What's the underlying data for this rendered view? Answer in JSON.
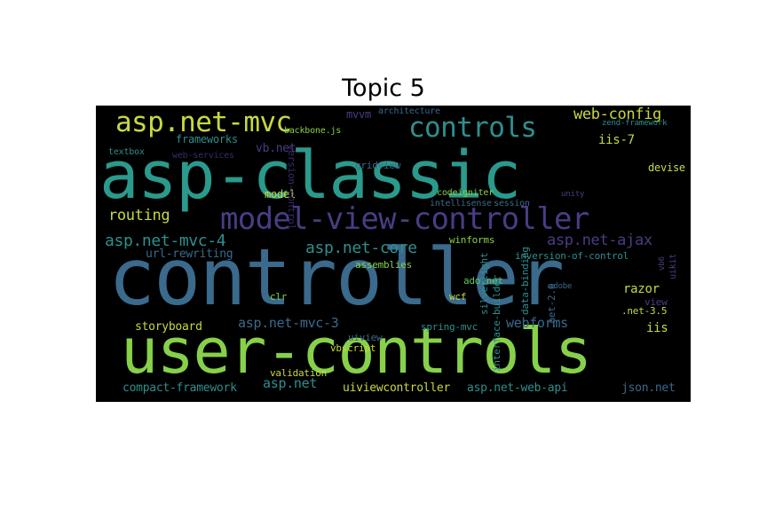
{
  "title": "Topic 5",
  "colors": {
    "yellow": "#c8d83e",
    "green": "#86d149",
    "teal": "#2a9a8c",
    "teal2": "#2e8f8e",
    "blue": "#3a6a8c",
    "purple": "#4a3c84",
    "darkpurple": "#3b2a6a",
    "lightgreen": "#5ec962"
  },
  "words": [
    {
      "id": "asp-classic",
      "text": "asp-classic"
    },
    {
      "id": "controller",
      "text": "controller"
    },
    {
      "id": "user-controls",
      "text": "user-controls"
    },
    {
      "id": "model-view-controller",
      "text": "model-view-controller"
    },
    {
      "id": "asp-net-mvc",
      "text": "asp.net-mvc"
    },
    {
      "id": "controls",
      "text": "controls"
    },
    {
      "id": "web-config",
      "text": "web-config"
    },
    {
      "id": "routing",
      "text": "routing"
    },
    {
      "id": "asp-net-mvc-4",
      "text": "asp.net-mvc-4"
    },
    {
      "id": "asp-net-core",
      "text": "asp.net-core"
    },
    {
      "id": "asp-net-ajax",
      "text": "asp.net-ajax"
    },
    {
      "id": "frameworks",
      "text": "frameworks"
    },
    {
      "id": "mvvm",
      "text": "mvvm"
    },
    {
      "id": "architecture",
      "text": "architecture"
    },
    {
      "id": "iis-7",
      "text": "iis-7"
    },
    {
      "id": "vb-net",
      "text": "vb.net"
    },
    {
      "id": "backbone-js",
      "text": "backbone.js"
    },
    {
      "id": "gridview",
      "text": "gridview"
    },
    {
      "id": "devise",
      "text": "devise"
    },
    {
      "id": "model",
      "text": "model"
    },
    {
      "id": "url-rewriting",
      "text": "url-rewriting"
    },
    {
      "id": "winforms",
      "text": "winforms"
    },
    {
      "id": "assemblies",
      "text": "assemblies"
    },
    {
      "id": "inversion-of-control",
      "text": "inversion-of-control"
    },
    {
      "id": "ado-net",
      "text": "ado.net"
    },
    {
      "id": "razor",
      "text": "razor"
    },
    {
      "id": "view",
      "text": "view"
    },
    {
      "id": "net-3-5",
      "text": ".net-3.5"
    },
    {
      "id": "storyboard",
      "text": "storyboard"
    },
    {
      "id": "asp-net-mvc-3",
      "text": "asp.net-mvc-3"
    },
    {
      "id": "spring-mvc",
      "text": "spring-mvc"
    },
    {
      "id": "webforms",
      "text": "webforms"
    },
    {
      "id": "iis",
      "text": "iis"
    },
    {
      "id": "uiview",
      "text": "uiview"
    },
    {
      "id": "vbscript",
      "text": "vbscript"
    },
    {
      "id": "validation",
      "text": "validation"
    },
    {
      "id": "compact-framework",
      "text": "compact-framework"
    },
    {
      "id": "asp-net",
      "text": "asp.net"
    },
    {
      "id": "uiviewcontroller",
      "text": "uiviewcontroller"
    },
    {
      "id": "asp-net-web-api",
      "text": "asp.net-web-api"
    },
    {
      "id": "json-net",
      "text": "json.net"
    },
    {
      "id": "codeigniter",
      "text": "codeigniter"
    },
    {
      "id": "intellisense",
      "text": "intellisense"
    },
    {
      "id": "session",
      "text": "session"
    },
    {
      "id": "wcf",
      "text": "wcf"
    },
    {
      "id": "silverlight",
      "text": "silverlight"
    },
    {
      "id": "interface-builder",
      "text": "interface-builder"
    },
    {
      "id": "data-binding",
      "text": "data-binding"
    },
    {
      "id": "web-services",
      "text": "web-services"
    },
    {
      "id": "net-2-0",
      "text": ".net-2.0"
    },
    {
      "id": "version-control",
      "text": "version-control"
    },
    {
      "id": "textbox",
      "text": "textbox"
    },
    {
      "id": "clr",
      "text": "clr"
    },
    {
      "id": "zend-framework",
      "text": "zend-framework"
    },
    {
      "id": "uikit",
      "text": "uikit"
    },
    {
      "id": "vb6",
      "text": "vb6"
    },
    {
      "id": "unity",
      "text": "unity"
    },
    {
      "id": "adobe",
      "text": "adobe"
    }
  ]
}
